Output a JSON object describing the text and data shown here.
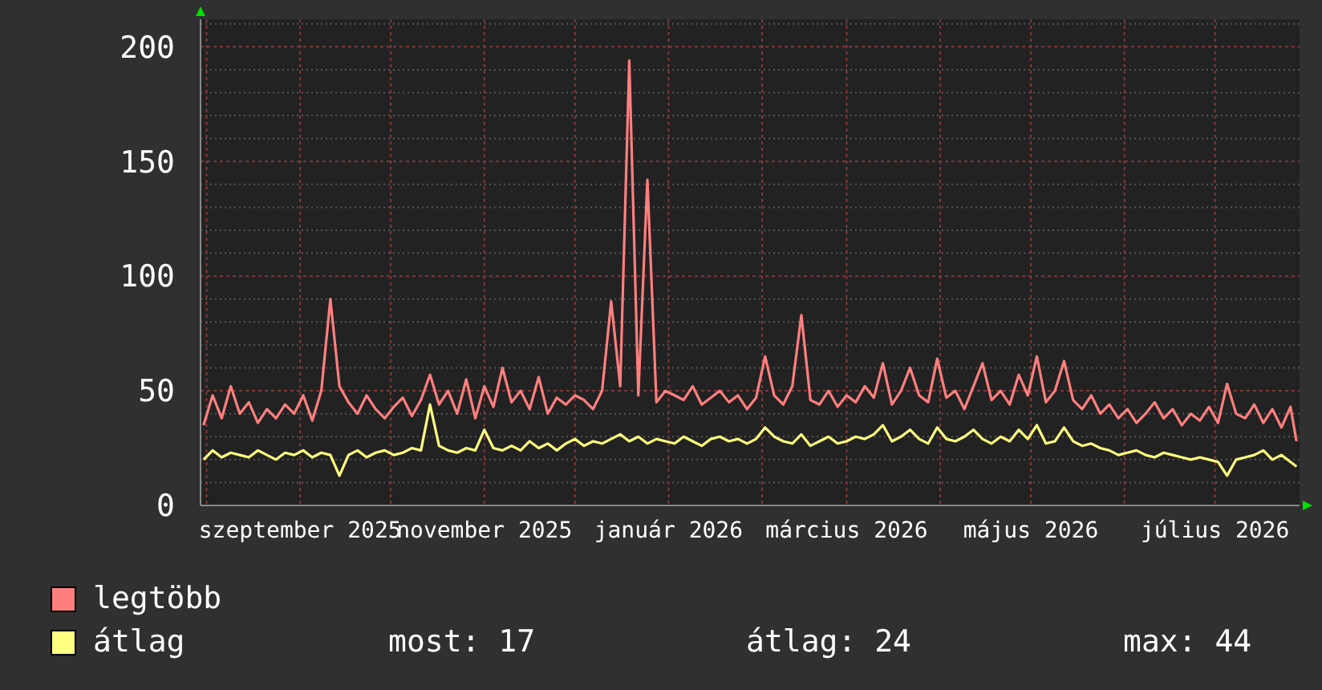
{
  "chart_data": {
    "type": "line",
    "x": [
      "2025-07-31",
      "2025-08-03",
      "2025-08-06",
      "2025-08-09",
      "2025-08-12",
      "2025-08-15",
      "2025-08-18",
      "2025-08-21",
      "2025-08-24",
      "2025-08-27",
      "2025-08-30",
      "2025-09-02",
      "2025-09-05",
      "2025-09-08",
      "2025-09-11",
      "2025-09-14",
      "2025-09-17",
      "2025-09-20",
      "2025-09-23",
      "2025-09-26",
      "2025-09-29",
      "2025-10-02",
      "2025-10-05",
      "2025-10-08",
      "2025-10-11",
      "2025-10-14",
      "2025-10-17",
      "2025-10-20",
      "2025-10-23",
      "2025-10-26",
      "2025-10-29",
      "2025-11-01",
      "2025-11-04",
      "2025-11-07",
      "2025-11-10",
      "2025-11-13",
      "2025-11-16",
      "2025-11-19",
      "2025-11-22",
      "2025-11-25",
      "2025-11-28",
      "2025-12-01",
      "2025-12-04",
      "2025-12-07",
      "2025-12-10",
      "2025-12-13",
      "2025-12-16",
      "2025-12-19",
      "2025-12-22",
      "2025-12-25",
      "2025-12-28",
      "2025-12-31",
      "2026-01-03",
      "2026-01-06",
      "2026-01-09",
      "2026-01-12",
      "2026-01-15",
      "2026-01-18",
      "2026-01-21",
      "2026-01-24",
      "2026-01-27",
      "2026-01-30",
      "2026-02-02",
      "2026-02-05",
      "2026-02-08",
      "2026-02-11",
      "2026-02-14",
      "2026-02-17",
      "2026-02-20",
      "2026-02-23",
      "2026-02-26",
      "2026-03-01",
      "2026-03-04",
      "2026-03-07",
      "2026-03-10",
      "2026-03-13",
      "2026-03-16",
      "2026-03-19",
      "2026-03-22",
      "2026-03-25",
      "2026-03-28",
      "2026-03-31",
      "2026-04-03",
      "2026-04-06",
      "2026-04-09",
      "2026-04-12",
      "2026-04-15",
      "2026-04-18",
      "2026-04-21",
      "2026-04-24",
      "2026-04-27",
      "2026-04-30",
      "2026-05-03",
      "2026-05-06",
      "2026-05-09",
      "2026-05-12",
      "2026-05-15",
      "2026-05-18",
      "2026-05-21",
      "2026-05-24",
      "2026-05-27",
      "2026-05-30",
      "2026-06-02",
      "2026-06-05",
      "2026-06-08",
      "2026-06-11",
      "2026-06-14",
      "2026-06-17",
      "2026-06-20",
      "2026-06-23",
      "2026-06-26",
      "2026-06-29",
      "2026-07-02",
      "2026-07-05",
      "2026-07-08",
      "2026-07-11",
      "2026-07-14",
      "2026-07-17",
      "2026-07-20",
      "2026-07-23",
      "2026-07-26",
      "2026-07-28"
    ],
    "series": [
      {
        "name": "legtöbb",
        "color": "#ff7f7f",
        "values": [
          35,
          48,
          38,
          52,
          40,
          45,
          36,
          42,
          38,
          44,
          40,
          48,
          37,
          50,
          90,
          52,
          45,
          40,
          48,
          42,
          38,
          43,
          47,
          39,
          46,
          57,
          44,
          50,
          40,
          55,
          38,
          52,
          43,
          60,
          45,
          50,
          42,
          56,
          40,
          47,
          44,
          48,
          46,
          42,
          50,
          89,
          52,
          194,
          48,
          142,
          45,
          50,
          48,
          46,
          52,
          44,
          47,
          50,
          45,
          48,
          42,
          47,
          65,
          48,
          44,
          52,
          83,
          46,
          44,
          50,
          43,
          48,
          45,
          52,
          47,
          62,
          44,
          50,
          60,
          48,
          45,
          64,
          47,
          50,
          42,
          52,
          62,
          46,
          50,
          44,
          57,
          48,
          65,
          45,
          50,
          63,
          46,
          42,
          48,
          40,
          44,
          38,
          42,
          36,
          40,
          45,
          38,
          42,
          35,
          40,
          37,
          43,
          36,
          53,
          40,
          38,
          44,
          36,
          42,
          34,
          43,
          28
        ]
      },
      {
        "name": "átlag",
        "color": "#ffff7f",
        "values": [
          20,
          24,
          21,
          23,
          22,
          21,
          24,
          22,
          20,
          23,
          22,
          24,
          21,
          23,
          22,
          13,
          22,
          24,
          21,
          23,
          24,
          22,
          23,
          25,
          24,
          44,
          26,
          24,
          23,
          25,
          24,
          33,
          25,
          24,
          26,
          24,
          28,
          25,
          27,
          24,
          27,
          29,
          26,
          28,
          27,
          29,
          31,
          28,
          30,
          27,
          29,
          28,
          27,
          30,
          28,
          26,
          29,
          30,
          28,
          29,
          27,
          29,
          34,
          30,
          28,
          27,
          31,
          26,
          28,
          30,
          27,
          28,
          30,
          29,
          31,
          35,
          28,
          30,
          33,
          29,
          27,
          34,
          29,
          28,
          30,
          33,
          29,
          27,
          30,
          28,
          33,
          29,
          35,
          27,
          28,
          34,
          28,
          26,
          27,
          25,
          24,
          22,
          23,
          24,
          22,
          21,
          23,
          22,
          21,
          20,
          21,
          20,
          19,
          13,
          20,
          21,
          22,
          24,
          20,
          22,
          19,
          17
        ]
      }
    ],
    "xlim": [
      "2025-07-30",
      "2026-07-29"
    ],
    "xticks": [
      {
        "value": "2025-08-01",
        "label": null
      },
      {
        "value": "2025-09-01",
        "label": "szeptember 2025"
      },
      {
        "value": "2025-10-01",
        "label": null
      },
      {
        "value": "2025-11-01",
        "label": "november 2025"
      },
      {
        "value": "2025-12-01",
        "label": null
      },
      {
        "value": "2026-01-01",
        "label": "január 2026"
      },
      {
        "value": "2026-02-01",
        "label": null
      },
      {
        "value": "2026-03-01",
        "label": "március 2026"
      },
      {
        "value": "2026-04-01",
        "label": null
      },
      {
        "value": "2026-05-01",
        "label": "május 2026"
      },
      {
        "value": "2026-06-01",
        "label": null
      },
      {
        "value": "2026-07-01",
        "label": "július 2026"
      }
    ],
    "ylim": [
      0,
      212
    ],
    "yticks": [
      0,
      {
        "value": 10,
        "label": null
      },
      {
        "value": 20,
        "label": null
      },
      {
        "value": 30,
        "label": null
      },
      {
        "value": 40,
        "label": null
      },
      50,
      {
        "value": 60,
        "label": null
      },
      {
        "value": 70,
        "label": null
      },
      {
        "value": 80,
        "label": null
      },
      {
        "value": 90,
        "label": null
      },
      100,
      {
        "value": 110,
        "label": null
      },
      {
        "value": 120,
        "label": null
      },
      {
        "value": 130,
        "label": null
      },
      {
        "value": 140,
        "label": null
      },
      150,
      {
        "value": 160,
        "label": null
      },
      {
        "value": 170,
        "label": null
      },
      {
        "value": 180,
        "label": null
      },
      {
        "value": 190,
        "label": null
      },
      200,
      {
        "value": 210,
        "label": null
      }
    ],
    "grid": true,
    "legend": "bottom",
    "annotations": [
      "most: 17",
      "átlag: 24",
      "max: 44"
    ]
  }
}
